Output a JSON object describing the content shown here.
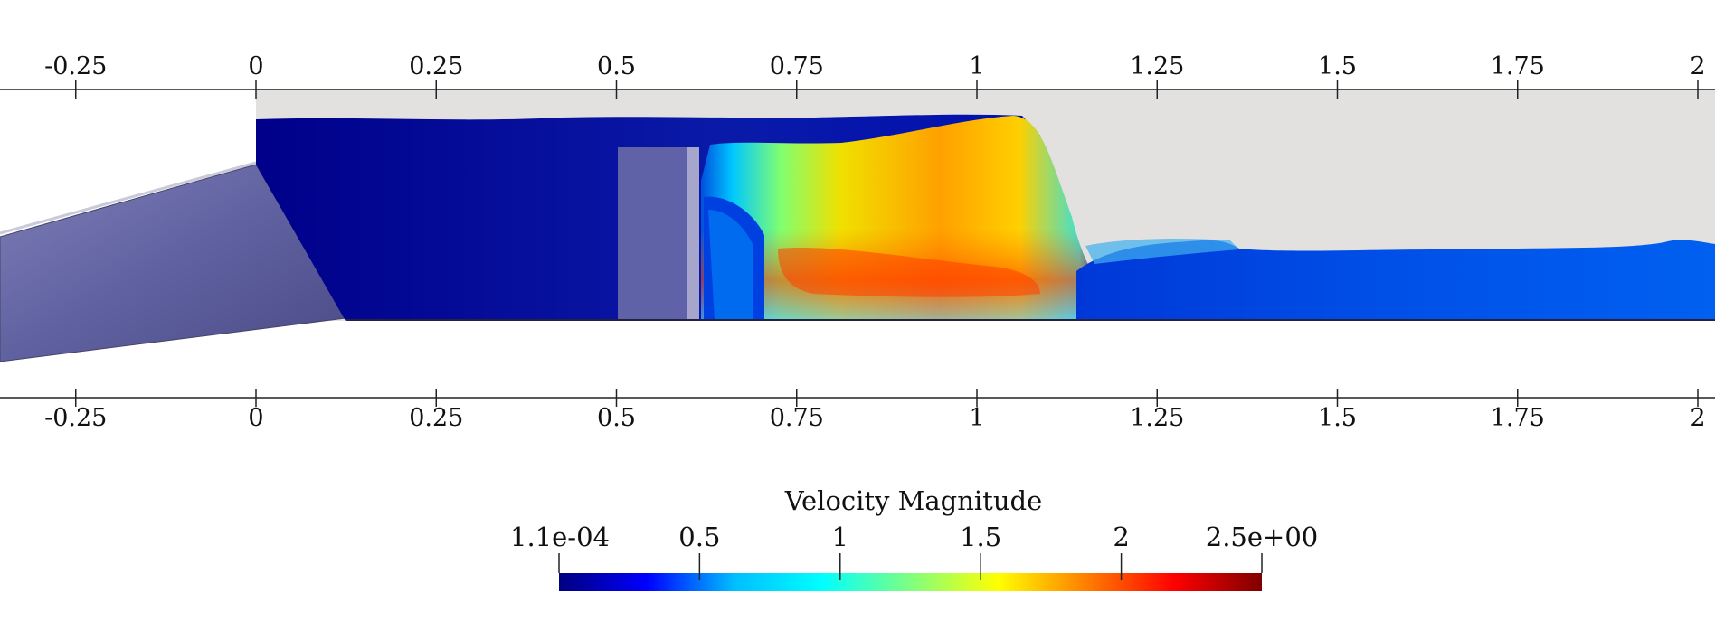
{
  "axis": {
    "ticks": [
      -0.25,
      0,
      0.25,
      0.5,
      0.75,
      1,
      1.25,
      1.5,
      1.75,
      2
    ],
    "tick_labels": [
      "-0.25",
      "0",
      "0.25",
      "0.5",
      "0.75",
      "1",
      "1.25",
      "1.5",
      "1.75",
      "2"
    ]
  },
  "colorbar": {
    "title": "Velocity Magnitude",
    "min": 0.00011,
    "max": 2.5,
    "min_label": "1.1e-04",
    "max_label": "2.5e+00",
    "ticks": [
      0.5,
      1,
      1.5,
      2
    ],
    "tick_labels": [
      "0.5",
      "1",
      "1.5",
      "2"
    ],
    "colormap": [
      "#00007f",
      "#0000ff",
      "#00bfff",
      "#00ffff",
      "#7fff7f",
      "#ffff00",
      "#ff7f00",
      "#ff0000",
      "#7f0000"
    ]
  },
  "colors": {
    "background": "#ffffff",
    "channel_wall": "#e2e1df",
    "ramp": "#6f70a8",
    "gate": "#8e8eb9",
    "axis_line": "#222222"
  }
}
